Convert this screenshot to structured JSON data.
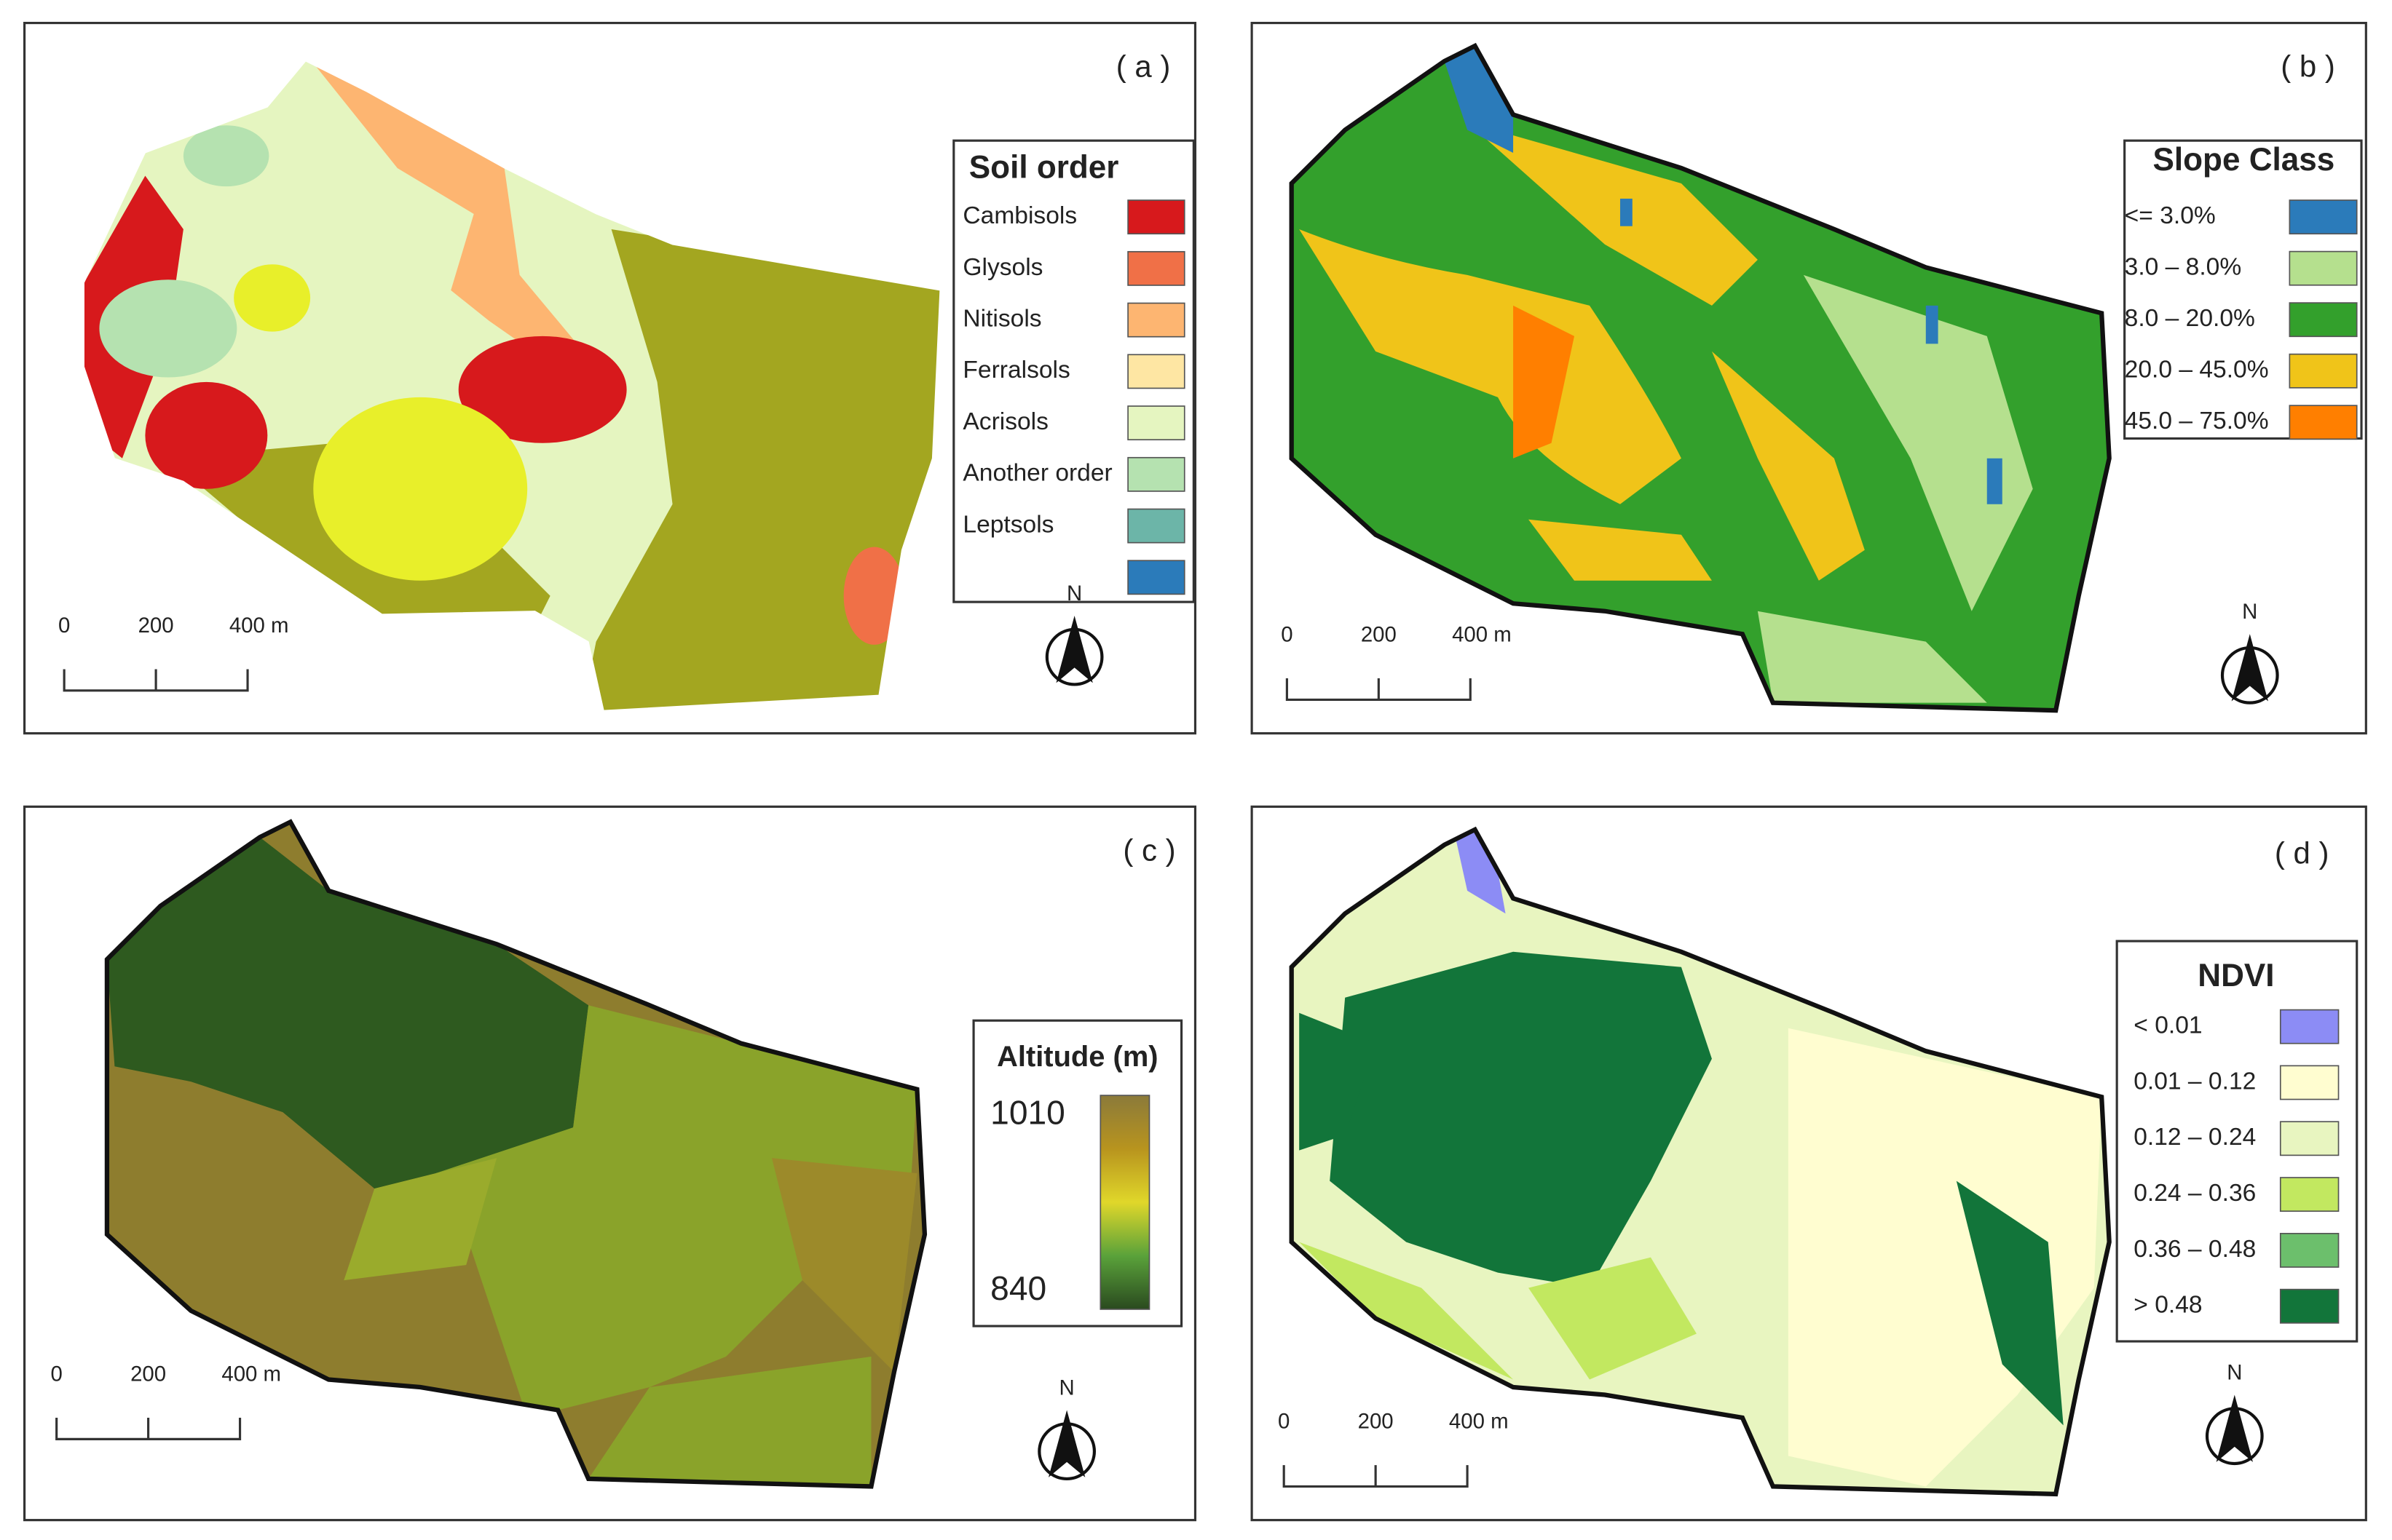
{
  "panels": [
    {
      "label": "( a )",
      "legend": {
        "title": "Soil order",
        "items": [
          {
            "label": "Cambisols",
            "color": "#d7191c"
          },
          {
            "label": "Glysols",
            "color": "#f07047"
          },
          {
            "label": "Nitisols",
            "color": "#fdb571"
          },
          {
            "label": "Ferralsols",
            "color": "#fee6a3"
          },
          {
            "label": "Acrisols",
            "color": "#e5f5c0"
          },
          {
            "label": "Another order",
            "color": "#b5e2b0"
          },
          {
            "label": "Leptsols",
            "color": "#6cb5a8"
          },
          {
            "label": null,
            "color": "#2b7bba"
          }
        ]
      },
      "scale": [
        "0",
        "200",
        "400 m"
      ],
      "north": "N"
    },
    {
      "label": "( b )",
      "legend": {
        "title": "Slope Class",
        "items": [
          {
            "label": "<= 3.0%",
            "color": "#2b7bba"
          },
          {
            "label": "3.0 – 8.0%",
            "color": "#b5e08e"
          },
          {
            "label": "8.0 – 20.0%",
            "color": "#33a02c"
          },
          {
            "label": "20.0 – 45.0%",
            "color": "#f0c419"
          },
          {
            "label": "45.0 – 75.0%",
            "color": "#ff7f00"
          }
        ]
      },
      "scale": [
        "0",
        "200",
        "400 m"
      ],
      "north": "N"
    },
    {
      "label": "( c )",
      "legend": {
        "title": "Altitude (m)",
        "max": "1010",
        "min": "840",
        "gradient": [
          "#8b7a3a",
          "#b8941e",
          "#e0d72a",
          "#5aa23a",
          "#2a4a1f"
        ]
      },
      "scale": [
        "0",
        "200",
        "400 m"
      ],
      "north": "N"
    },
    {
      "label": "( d )",
      "legend": {
        "title": "NDVI",
        "items": [
          {
            "label": "< 0.01",
            "color": "#8c8cf5"
          },
          {
            "label": "0.01 – 0.12",
            "color": "#fffdd0"
          },
          {
            "label": "0.12 – 0.24",
            "color": "#e8f5c0"
          },
          {
            "label": "0.24 – 0.36",
            "color": "#c2e860"
          },
          {
            "label": "0.36 – 0.48",
            "color": "#6cbf6c"
          },
          {
            "label": "> 0.48",
            "color": "#12753a"
          }
        ]
      },
      "scale": [
        "0",
        "200",
        "400 m"
      ],
      "north": "N"
    }
  ]
}
